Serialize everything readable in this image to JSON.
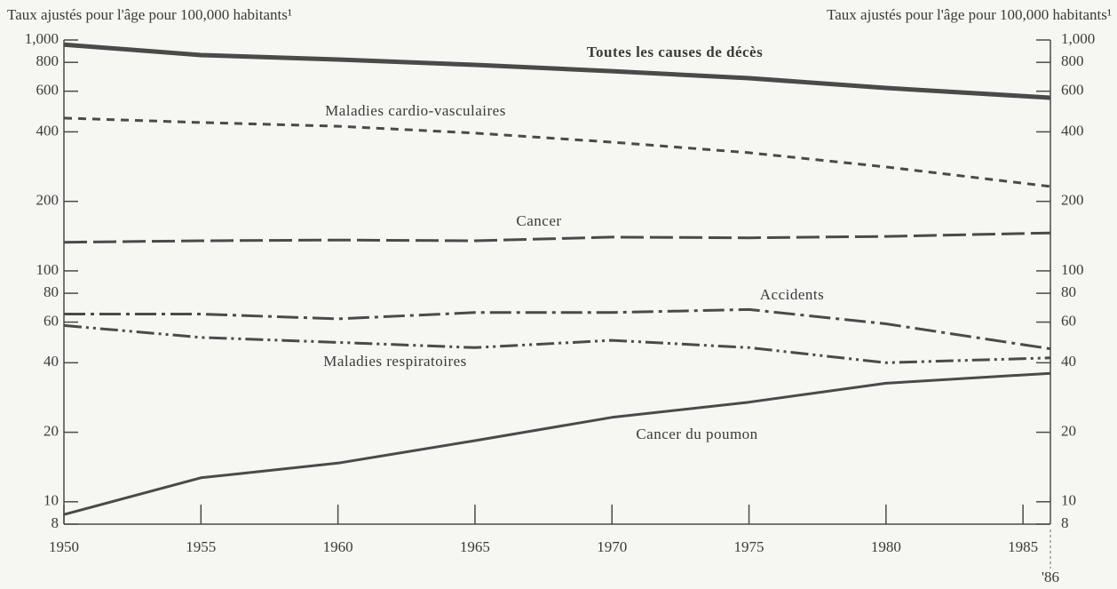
{
  "chart_data": {
    "type": "line",
    "y_label": "Taux ajustés pour l'âge pour 100,000 habitants¹",
    "y2_label": "Taux ajustés pour l'âge pour 100,000 habitants¹",
    "x": [
      1950,
      1955,
      1960,
      1965,
      1970,
      1975,
      1980,
      1986
    ],
    "xlim": [
      1950,
      1986
    ],
    "xticks": [
      1950,
      1955,
      1960,
      1965,
      1970,
      1975,
      1980,
      1985,
      {
        "value": 1986,
        "label": "'86"
      }
    ],
    "log_scale": true,
    "ylim": [
      8,
      1000
    ],
    "yticks": [
      8,
      10,
      20,
      40,
      60,
      80,
      100,
      200,
      400,
      600,
      800,
      {
        "value": 1000,
        "label": "1,000"
      }
    ],
    "y2lim": [
      8,
      1000
    ],
    "y2ticks": [
      8,
      10,
      20,
      40,
      60,
      80,
      100,
      200,
      400,
      600,
      800,
      {
        "value": 1000,
        "label": "1,000"
      }
    ],
    "series": [
      {
        "name": "Toutes les causes de décès",
        "color": "#4a4a4a",
        "style": "solid-thick",
        "values": [
          955,
          860,
          823,
          780,
          733,
          683,
          620,
          562
        ]
      },
      {
        "name": "Maladies cardio-vasculaires",
        "color": "#4a4a4a",
        "style": "dashed",
        "values": [
          459,
          439,
          423,
          395,
          361,
          325,
          282,
          232
        ]
      },
      {
        "name": "Cancer",
        "color": "#4a4a4a",
        "style": "long-dash",
        "values": [
          133,
          135,
          136,
          135,
          140,
          139,
          141,
          146
        ]
      },
      {
        "name": "Accidents",
        "color": "#4a4a4a",
        "style": "dash-dot",
        "values": [
          65,
          65,
          62,
          66,
          66,
          68,
          59,
          46
        ]
      },
      {
        "name": "Maladies respiratoires",
        "color": "#4a4a4a",
        "style": "dash-dot-dot",
        "values": [
          58,
          51.5,
          49,
          46.5,
          50,
          46.5,
          40,
          42
        ]
      },
      {
        "name": "Cancer du poumon",
        "color": "#4a4a4a",
        "style": "solid",
        "values": [
          8.8,
          12.7,
          14.7,
          18.4,
          23.2,
          27,
          32.6,
          36
        ]
      }
    ]
  }
}
